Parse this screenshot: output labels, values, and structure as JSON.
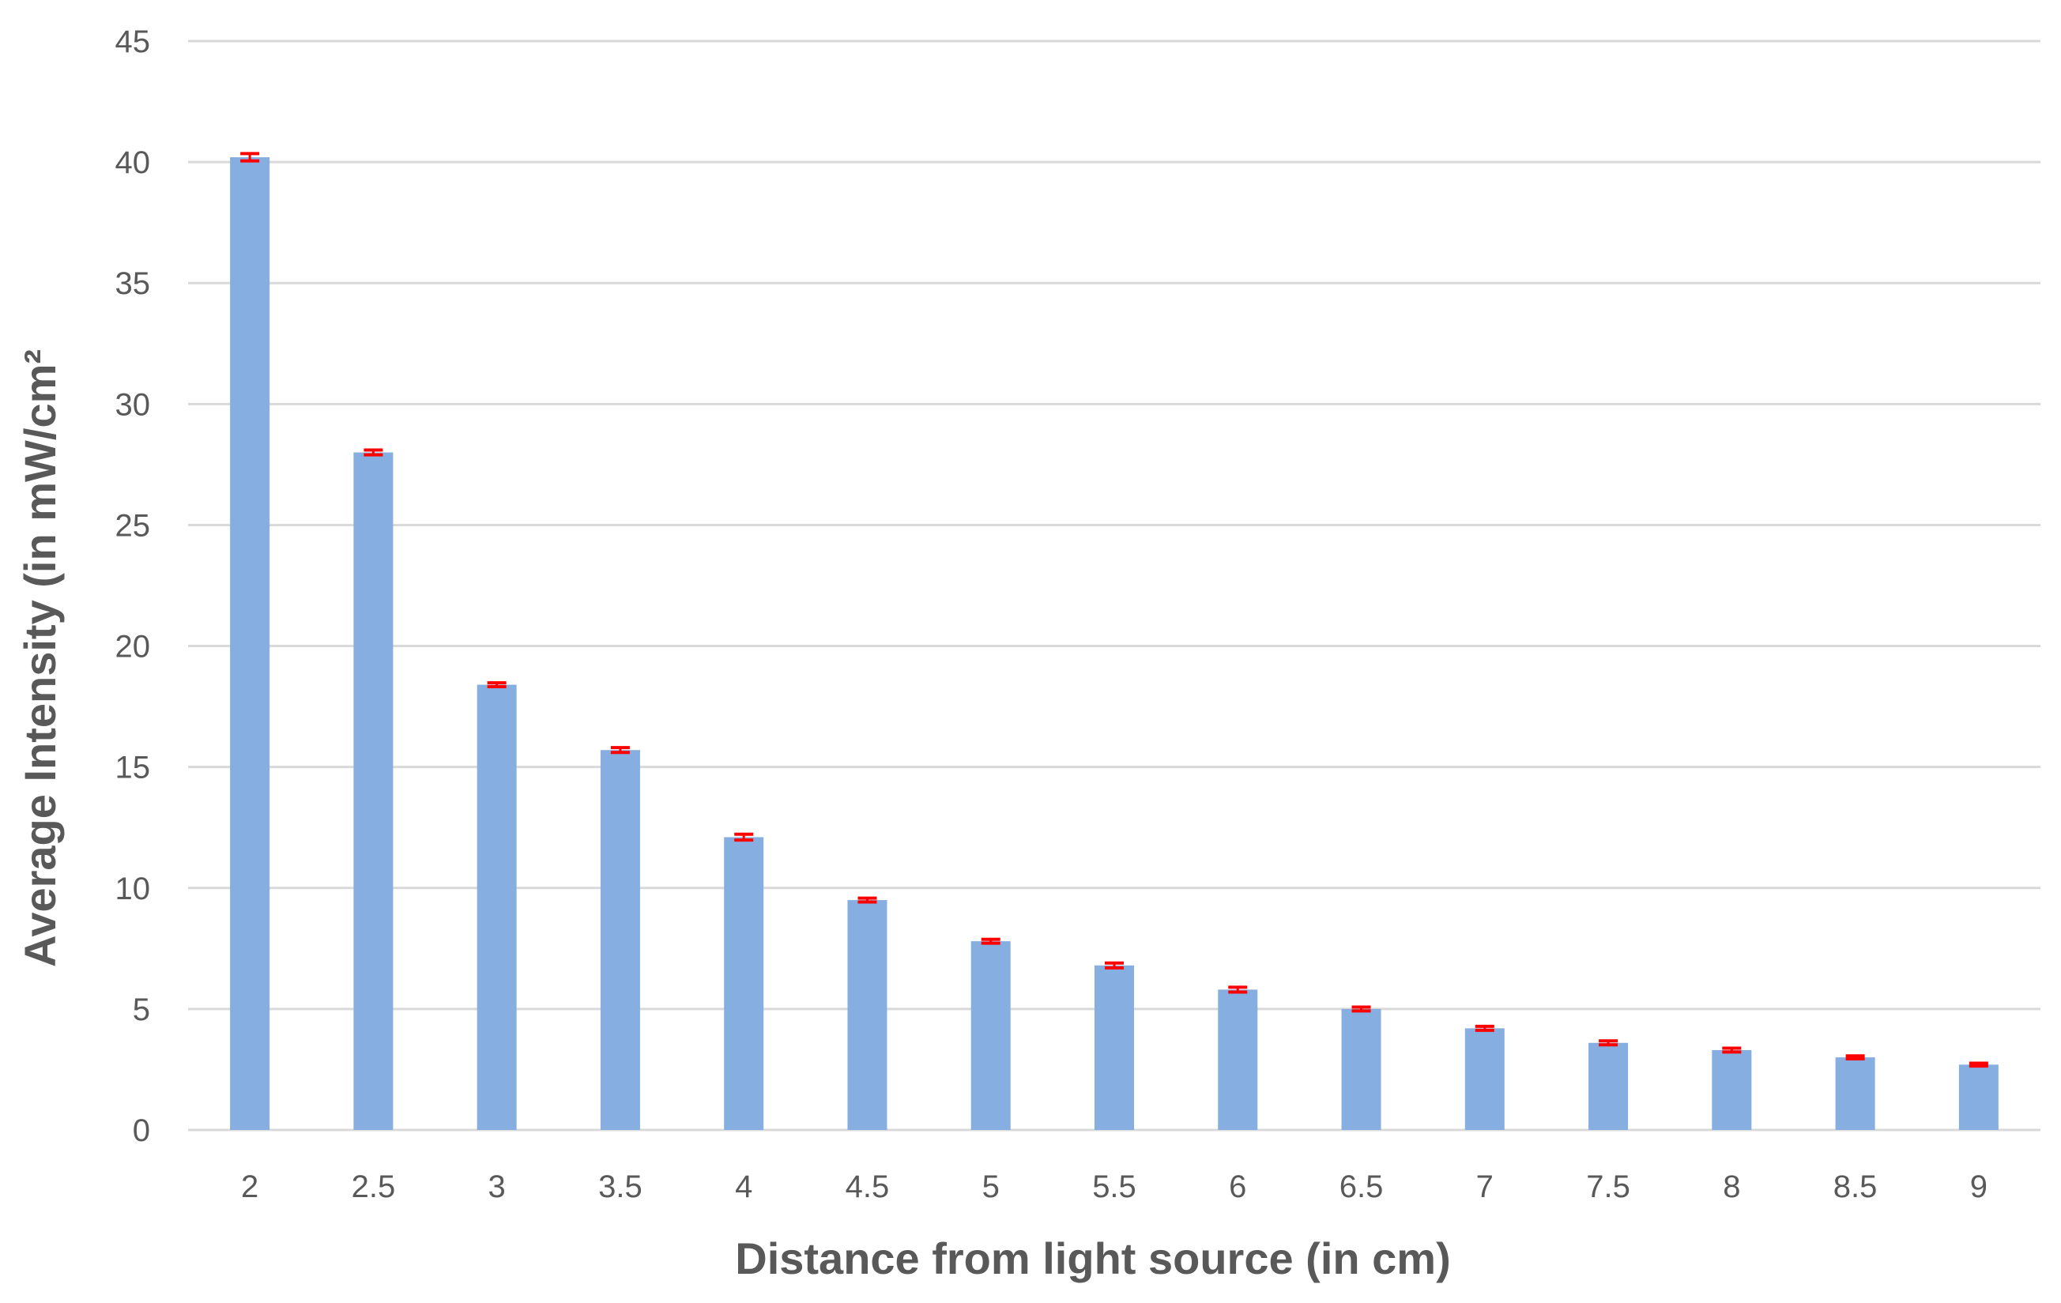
{
  "chart_data": {
    "type": "bar",
    "title": "",
    "xlabel": "Distance from light source (in cm)",
    "ylabel": "Average Intensity (in mW/cm²",
    "categories": [
      "2",
      "2.5",
      "3",
      "3.5",
      "4",
      "4.5",
      "5",
      "5.5",
      "6",
      "6.5",
      "7",
      "7.5",
      "8",
      "8.5",
      "9"
    ],
    "values": [
      40.2,
      28.0,
      18.4,
      15.7,
      12.1,
      9.5,
      7.8,
      6.8,
      5.8,
      5.0,
      4.2,
      3.6,
      3.3,
      3.0,
      2.7
    ],
    "error": [
      0.15,
      0.1,
      0.08,
      0.1,
      0.12,
      0.08,
      0.08,
      0.1,
      0.1,
      0.08,
      0.08,
      0.08,
      0.08,
      0.06,
      0.06
    ],
    "ylim": [
      0,
      45
    ],
    "yticks": [
      "0",
      "5",
      "10",
      "15",
      "20",
      "25",
      "30",
      "35",
      "40",
      "45"
    ],
    "grid": true,
    "legend": "none",
    "colors": {
      "bar": "#86aee0",
      "error": "#ff0000",
      "grid": "#d9d9d9",
      "text": "#595959"
    }
  }
}
